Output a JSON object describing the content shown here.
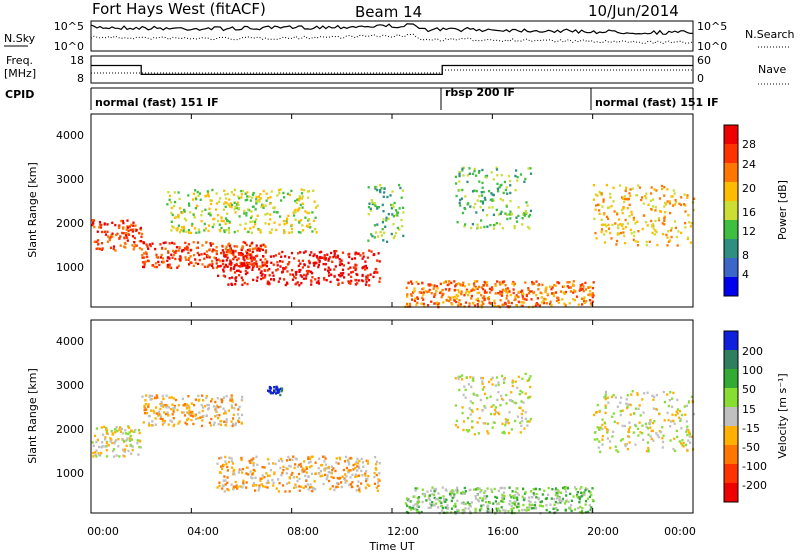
{
  "header": {
    "station": "Fort Hays West (fitACF)",
    "beam": "Beam 14",
    "date": "10/Jun/2014"
  },
  "left_labels": {
    "nsky": "N.Sky",
    "freq_line1": "Freq.",
    "freq_line2": "[MHz]",
    "cpid": "CPID"
  },
  "right_labels": {
    "nsearch": "N.Search",
    "nave": "Nave"
  },
  "noise_panel": {
    "left_ticks": [
      "10^5",
      "10^0"
    ],
    "right_ticks": [
      "10^5",
      "10^0"
    ]
  },
  "freq_panel": {
    "left_ticks": [
      "18",
      "8"
    ],
    "right_ticks": [
      "60",
      "0"
    ],
    "freq_steps": [
      {
        "t": 0.0,
        "v": 14.5
      },
      {
        "t": 2.0,
        "v": 11.2
      },
      {
        "t": 14.0,
        "v": 14.5
      },
      {
        "t": 24.0,
        "v": 14.5
      }
    ]
  },
  "cpid": {
    "segments": [
      {
        "start": 0.0,
        "end": 14.0,
        "label": "normal (fast) 151 IF"
      },
      {
        "start": 14.0,
        "end": 20.0,
        "label": "rbsp 200 IF"
      },
      {
        "start": 20.0,
        "end": 24.0,
        "label": "normal (fast) 151 IF"
      }
    ]
  },
  "power_panel": {
    "ylabel": "Slant Range [km]",
    "yticks": [
      "4000",
      "3000",
      "2000",
      "1000"
    ],
    "colorbar_label": "Power [dB]",
    "colorbar_ticks": [
      "28",
      "24",
      "20",
      "16",
      "12",
      "8",
      "4"
    ],
    "colors": [
      "#0000ee",
      "#3c66c8",
      "#2f8f80",
      "#3fbf40",
      "#ccdd33",
      "#ffbb00",
      "#ff7700",
      "#ff3300",
      "#ee0000"
    ]
  },
  "velocity_panel": {
    "ylabel": "Slant Range [km]",
    "yticks": [
      "4000",
      "3000",
      "2000",
      "1000"
    ],
    "colorbar_label": "Velocity [m s⁻¹]",
    "colorbar_ticks": [
      "200",
      "100",
      "50",
      "15",
      "-15",
      "-50",
      "-100",
      "-200"
    ],
    "colors": [
      "#1020dd",
      "#2f7f5f",
      "#33aa33",
      "#88dd33",
      "#c0c0c0",
      "#ffb000",
      "#ff7700",
      "#ff3300",
      "#ee0000"
    ]
  },
  "x_axis": {
    "label": "Time UT",
    "ticks": [
      "00:00",
      "04:00",
      "08:00",
      "12:00",
      "16:00",
      "20:00",
      "00:00"
    ]
  },
  "chart_data": {
    "type": "heatmap",
    "x_range_hours": [
      0,
      24
    ],
    "y_range_km": [
      180,
      4600
    ],
    "power_regions": [
      {
        "t0": 0.0,
        "t1": 2.0,
        "r0": 1500,
        "r1": 2200,
        "level": 7
      },
      {
        "t0": 2.0,
        "t1": 7.0,
        "r0": 1100,
        "r1": 1700,
        "level": 7
      },
      {
        "t0": 5.0,
        "t1": 11.5,
        "r0": 700,
        "r1": 1500,
        "level": 8
      },
      {
        "t0": 3.0,
        "t1": 9.0,
        "r0": 1900,
        "r1": 2900,
        "level": 4
      },
      {
        "t0": 11.0,
        "t1": 12.5,
        "r0": 1700,
        "r1": 3000,
        "level": 3
      },
      {
        "t0": 14.5,
        "t1": 17.5,
        "r0": 2000,
        "r1": 3400,
        "level": 3
      },
      {
        "t0": 12.5,
        "t1": 20.0,
        "r0": 200,
        "r1": 800,
        "level": 6
      },
      {
        "t0": 20.0,
        "t1": 24.0,
        "r0": 1600,
        "r1": 3000,
        "level": 5
      }
    ],
    "velocity_regions": [
      {
        "t0": 0.0,
        "t1": 2.0,
        "r0": 1500,
        "r1": 2200,
        "level": 4
      },
      {
        "t0": 2.0,
        "t1": 6.0,
        "r0": 2200,
        "r1": 2900,
        "level": 5
      },
      {
        "t0": 5.0,
        "t1": 11.5,
        "r0": 700,
        "r1": 1500,
        "level": 5
      },
      {
        "t0": 7.0,
        "t1": 7.6,
        "r0": 2900,
        "r1": 3100,
        "level": 0
      },
      {
        "t0": 14.5,
        "t1": 17.5,
        "r0": 2000,
        "r1": 3400,
        "level": 4
      },
      {
        "t0": 12.5,
        "t1": 20.0,
        "r0": 200,
        "r1": 800,
        "level": 3
      },
      {
        "t0": 20.0,
        "t1": 24.0,
        "r0": 1600,
        "r1": 3000,
        "level": 4
      }
    ]
  }
}
